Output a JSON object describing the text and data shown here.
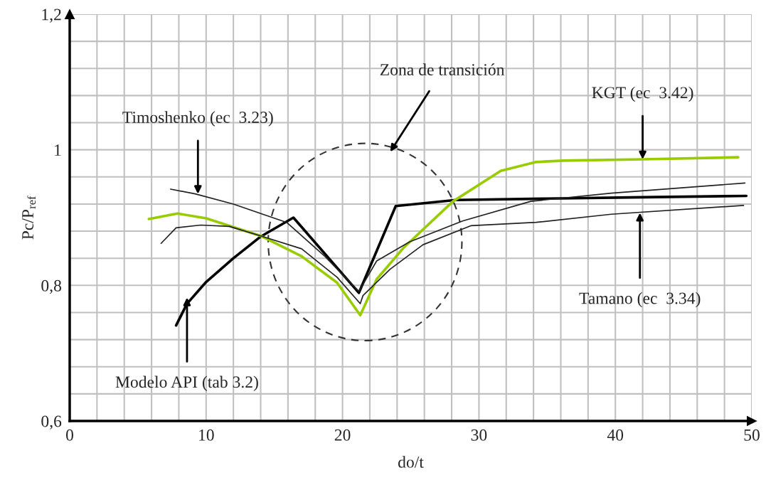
{
  "chart_data": {
    "type": "line",
    "xlabel": "do/t",
    "ylabel": "Pc/P$_{ref}$",
    "xlim": [
      0,
      50
    ],
    "ylim": [
      0.6,
      1.2
    ],
    "xticks": [
      0,
      {
        "value": 2,
        "label": null
      },
      {
        "value": 4,
        "label": null
      },
      {
        "value": 6,
        "label": null
      },
      {
        "value": 8,
        "label": null
      },
      10,
      {
        "value": 12,
        "label": null
      },
      {
        "value": 14,
        "label": null
      },
      {
        "value": 16,
        "label": null
      },
      {
        "value": 18,
        "label": null
      },
      20,
      {
        "value": 22,
        "label": null
      },
      {
        "value": 24,
        "label": null
      },
      {
        "value": 26,
        "label": null
      },
      {
        "value": 28,
        "label": null
      },
      30,
      {
        "value": 32,
        "label": null
      },
      {
        "value": 34,
        "label": null
      },
      {
        "value": 36,
        "label": null
      },
      {
        "value": 38,
        "label": null
      },
      40,
      {
        "value": 42,
        "label": null
      },
      {
        "value": 44,
        "label": null
      },
      {
        "value": 46,
        "label": null
      },
      {
        "value": 48,
        "label": null
      },
      50
    ],
    "yticks": [
      {
        "value": 0.6,
        "label": "0,6"
      },
      {
        "value": 0.64,
        "label": null
      },
      {
        "value": 0.68,
        "label": null
      },
      {
        "value": 0.72,
        "label": null
      },
      {
        "value": 0.76,
        "label": null
      },
      {
        "value": 0.8,
        "label": "0,8"
      },
      {
        "value": 0.84,
        "label": null
      },
      {
        "value": 0.88,
        "label": null
      },
      {
        "value": 0.92,
        "label": null
      },
      {
        "value": 0.96,
        "label": null
      },
      {
        "value": 1.0,
        "label": "1"
      },
      {
        "value": 1.04,
        "label": null
      },
      {
        "value": 1.08,
        "label": null
      },
      {
        "value": 1.12,
        "label": null
      },
      {
        "value": 1.16,
        "label": null
      },
      {
        "value": 1.2,
        "label": "1,2"
      }
    ],
    "grid": true,
    "series": [
      {
        "color": "#000000",
        "x": [
          7.8,
          8.6,
          10.0,
          12.0,
          14.0,
          16.4,
          21.2,
          23.9,
          28.3,
          35.0,
          42.0,
          49.6
        ],
        "values": [
          0.741,
          0.773,
          0.805,
          0.84,
          0.872,
          0.9,
          0.789,
          0.917,
          0.926,
          0.928,
          0.93,
          0.932
        ]
      },
      {
        "color": "#99cc00",
        "x": [
          5.8,
          7.9,
          10.0,
          14.0,
          17.0,
          19.6,
          21.3,
          22.5,
          24.5,
          28.1,
          31.6,
          34.2,
          36.2,
          42.0,
          49.0
        ],
        "values": [
          0.898,
          0.906,
          0.899,
          0.873,
          0.843,
          0.804,
          0.756,
          0.809,
          0.856,
          0.924,
          0.969,
          0.982,
          0.984,
          0.986,
          0.989
        ]
      },
      {
        "color": "#222222",
        "x": [
          7.4,
          9.2,
          12.0,
          14.0,
          15.9,
          18.7,
          21.2,
          22.5,
          24.9,
          28.8,
          33.8,
          39.7,
          49.5
        ],
        "values": [
          0.942,
          0.935,
          0.92,
          0.906,
          0.893,
          0.843,
          0.791,
          0.836,
          0.864,
          0.895,
          0.924,
          0.936,
          0.951
        ]
      },
      {
        "color": "#222222",
        "x": [
          6.7,
          7.8,
          9.6,
          11.7,
          14.0,
          17.0,
          19.6,
          21.3,
          21.5,
          23.5,
          25.9,
          29.4,
          34.2,
          39.7,
          49.4
        ],
        "values": [
          0.862,
          0.885,
          0.889,
          0.887,
          0.873,
          0.854,
          0.812,
          0.773,
          0.785,
          0.824,
          0.86,
          0.888,
          0.893,
          0.905,
          0.918
        ]
      }
    ],
    "annotations": [
      {
        "text": "Timoshenko (ec  3.23)",
        "x": 9.4,
        "y": 0.935
      },
      {
        "text": "KGT (ec  3.42)",
        "x": 42.0,
        "y": 0.986
      },
      {
        "text": "Tamano (ec  3.34)",
        "x": 41.8,
        "y": 0.907
      },
      {
        "text": "Modelo API (tab 3.2)",
        "x": 8.6,
        "y": 0.782
      },
      "Zona de transición"
    ]
  }
}
